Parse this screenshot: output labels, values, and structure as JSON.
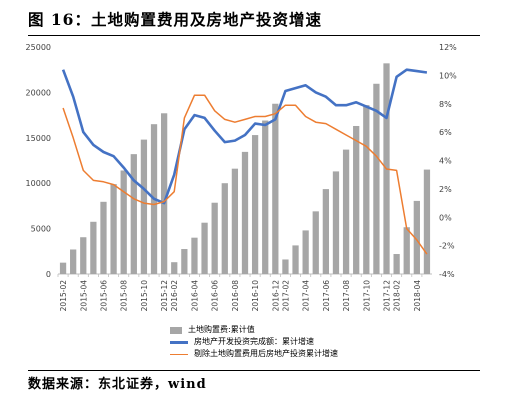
{
  "figure": {
    "title": "图 16：土地购置费用及房地产投资增速",
    "source": "数据来源：东北证券，wind"
  },
  "chart_data": {
    "type": "bar+line",
    "x": [
      "2015-02",
      "2015-03",
      "2015-04",
      "2015-05",
      "2015-06",
      "2015-07",
      "2015-08",
      "2015-09",
      "2015-10",
      "2015-11",
      "2015-12",
      "2016-02",
      "2016-03",
      "2016-04",
      "2016-05",
      "2016-06",
      "2016-07",
      "2016-08",
      "2016-09",
      "2016-10",
      "2016-11",
      "2016-12",
      "2017-02",
      "2017-03",
      "2017-04",
      "2017-05",
      "2017-06",
      "2017-07",
      "2017-08",
      "2017-09",
      "2017-10",
      "2017-11",
      "2017-12",
      "2018-02",
      "2018-03",
      "2018-04",
      "2018-05"
    ],
    "x_tick_labels": [
      "2015-02",
      "2015-04",
      "2015-06",
      "2015-08",
      "2015-10",
      "2015-12",
      "2016-02",
      "2016-04",
      "2016-06",
      "2016-08",
      "2016-10",
      "2016-12",
      "2017-02",
      "2017-04",
      "2017-06",
      "2017-08",
      "2017-10",
      "2017-12",
      "2018-02",
      "2018-04"
    ],
    "y_left": {
      "min": 0,
      "max": 25000,
      "ticks": [
        0,
        5000,
        10000,
        15000,
        20000,
        25000
      ]
    },
    "y_right": {
      "min": -4,
      "max": 12,
      "ticks": [
        -4,
        -2,
        0,
        2,
        4,
        6,
        8,
        10,
        12
      ],
      "unit": "%"
    },
    "grid": false,
    "legend_position": "bottom",
    "series": [
      {
        "name": "土地购置费:累计值",
        "type": "bar",
        "axis": "left",
        "color": "#a6a6a6",
        "values": [
          1250,
          2700,
          4050,
          5750,
          7950,
          9900,
          11400,
          13200,
          14800,
          16500,
          17700,
          1300,
          2750,
          4000,
          5650,
          7850,
          10000,
          11600,
          13450,
          15300,
          16900,
          18750,
          1600,
          3150,
          4800,
          6900,
          9350,
          11300,
          13700,
          16300,
          18600,
          20950,
          23200,
          2200,
          5150,
          8050,
          11500
        ]
      },
      {
        "name": "房地产开发投资完成额：累计增速",
        "type": "line",
        "axis": "right",
        "color": "#4472c4",
        "values": [
          10.4,
          8.5,
          6.0,
          5.1,
          4.6,
          4.3,
          3.5,
          2.6,
          2.0,
          1.3,
          1.0,
          3.0,
          6.2,
          7.2,
          7.0,
          6.1,
          5.3,
          5.4,
          5.8,
          6.6,
          6.5,
          6.9,
          8.9,
          9.1,
          9.3,
          8.8,
          8.5,
          7.9,
          7.9,
          8.1,
          7.8,
          7.5,
          7.0,
          9.9,
          10.4,
          10.3,
          10.2
        ]
      },
      {
        "name": "剔除土地购置费用后房地产投资累计增速",
        "type": "line",
        "axis": "right",
        "color": "#ed7d31",
        "values": [
          7.7,
          5.6,
          3.3,
          2.6,
          2.5,
          2.3,
          1.8,
          1.3,
          1.0,
          0.9,
          1.1,
          1.8,
          7.0,
          8.6,
          8.6,
          7.5,
          6.9,
          6.7,
          6.9,
          7.1,
          7.1,
          7.3,
          7.9,
          7.9,
          7.1,
          6.7,
          6.6,
          6.2,
          5.8,
          5.4,
          5.0,
          4.3,
          3.4,
          3.3,
          -0.8,
          -1.6,
          -2.6
        ]
      }
    ]
  }
}
